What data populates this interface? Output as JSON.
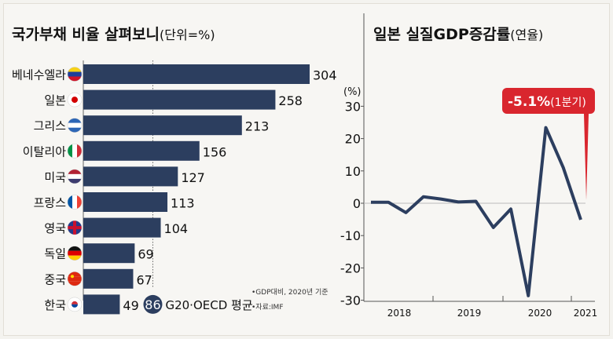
{
  "chart_data": [
    {
      "type": "bar",
      "orientation": "horizontal",
      "title": "국가부채 비율 살펴보니",
      "unit_note": "(단위=%)",
      "categories": [
        "베네수엘라",
        "일본",
        "그리스",
        "이탈리아",
        "미국",
        "프랑스",
        "영국",
        "독일",
        "중국",
        "한국"
      ],
      "values": [
        304,
        258,
        213,
        156,
        127,
        113,
        104,
        69,
        67,
        49
      ],
      "flags": [
        "venezuela-flag-icon",
        "japan-flag-icon",
        "greece-flag-icon",
        "italy-flag-icon",
        "usa-flag-icon",
        "france-flag-icon",
        "uk-flag-icon",
        "germany-flag-icon",
        "china-flag-icon",
        "korea-flag-icon"
      ],
      "reference_line": {
        "value": 86,
        "label": "G20·OECD 평균"
      },
      "notes": [
        "•GDP대비, 2020년 기준",
        "•자료:IMF"
      ],
      "bar_color": "#2c3e5f"
    },
    {
      "type": "line",
      "title": "일본 실질GDP증감률",
      "title_suffix": "(연율)",
      "ylabel": "(%)",
      "ylim": [
        -30,
        30
      ],
      "yticks": [
        30,
        20,
        10,
        0,
        -10,
        -20,
        -30
      ],
      "x_year_labels": [
        "2018",
        "2019",
        "2020",
        "2021"
      ],
      "values": [
        0.3,
        0.3,
        -2.9,
        2.0,
        1.3,
        0.4,
        0.6,
        -7.5,
        -1.8,
        -28.6,
        23.4,
        11.0,
        -5.1
      ],
      "annotation": {
        "value": "-5.1%",
        "suffix": "(1분기)",
        "color": "#d9262e"
      },
      "line_color": "#2c3e5f"
    }
  ]
}
